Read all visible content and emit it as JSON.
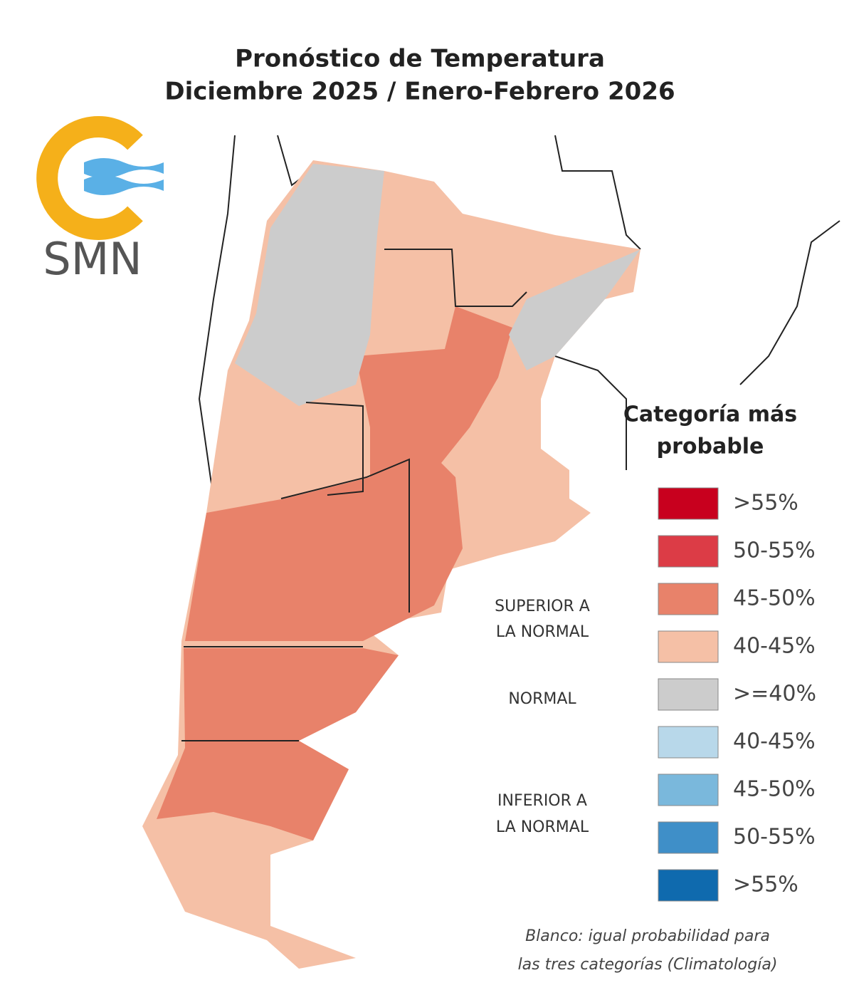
{
  "header": {
    "title": [
      "Pronóstico de Temperatura",
      "Diciembre 2025 / Enero-Febrero 2026"
    ]
  },
  "logo": {
    "text": "SMN"
  },
  "legend": {
    "title": [
      "Categoría más",
      "probable"
    ],
    "items": [
      {
        "label": ">55%",
        "color": "#c8001e"
      },
      {
        "label": "50-55%",
        "color": "#dc3c46"
      },
      {
        "label": "45-50%",
        "color": "#e8826a"
      },
      {
        "label": "40-45%",
        "color": "#f5c0a6"
      },
      {
        "label": ">=40%",
        "color": "#cccccc"
      },
      {
        "label": "40-45%",
        "color": "#b8d8ea"
      },
      {
        "label": "45-50%",
        "color": "#7ab8dc"
      },
      {
        "label": "50-55%",
        "color": "#3f8fc8"
      },
      {
        "label": ">55%",
        "color": "#0f6aae"
      }
    ],
    "groups": [
      {
        "lines": [
          "SUPERIOR A",
          "LA NORMAL"
        ]
      },
      {
        "lines": [
          "NORMAL"
        ]
      },
      {
        "lines": [
          "INFERIOR A",
          "LA NORMAL"
        ]
      }
    ]
  },
  "note": [
    "Blanco: igual probabilidad para",
    "las tres categorías (Climatología)"
  ]
}
